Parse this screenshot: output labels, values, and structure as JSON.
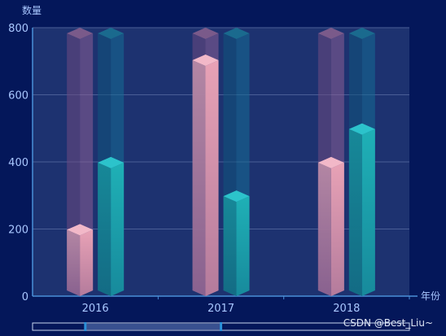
{
  "chart_data": {
    "type": "bar",
    "xlabel": "年份",
    "ylabel": "数量",
    "categories": [
      "2016",
      "2017",
      "2018"
    ],
    "ylim": [
      0,
      800
    ],
    "yticks": [
      0,
      200,
      400,
      600,
      800
    ],
    "grid": true,
    "style": "3d-cylinder-bars-with-background",
    "series": [
      {
        "values": [
          215,
          720,
          415
        ],
        "color": "#e8a0b4"
      },
      {
        "values": [
          415,
          315,
          515
        ],
        "color": "#1aa3b3"
      }
    ],
    "datazoom": {
      "start": 0.14,
      "end": 0.5
    }
  },
  "watermark": "CSDN @Best_Liu~",
  "colors": {
    "background": "#04175a",
    "plot_area": "#1d3270",
    "axis": "#4a8fd8",
    "label": "#a9c7ff"
  }
}
